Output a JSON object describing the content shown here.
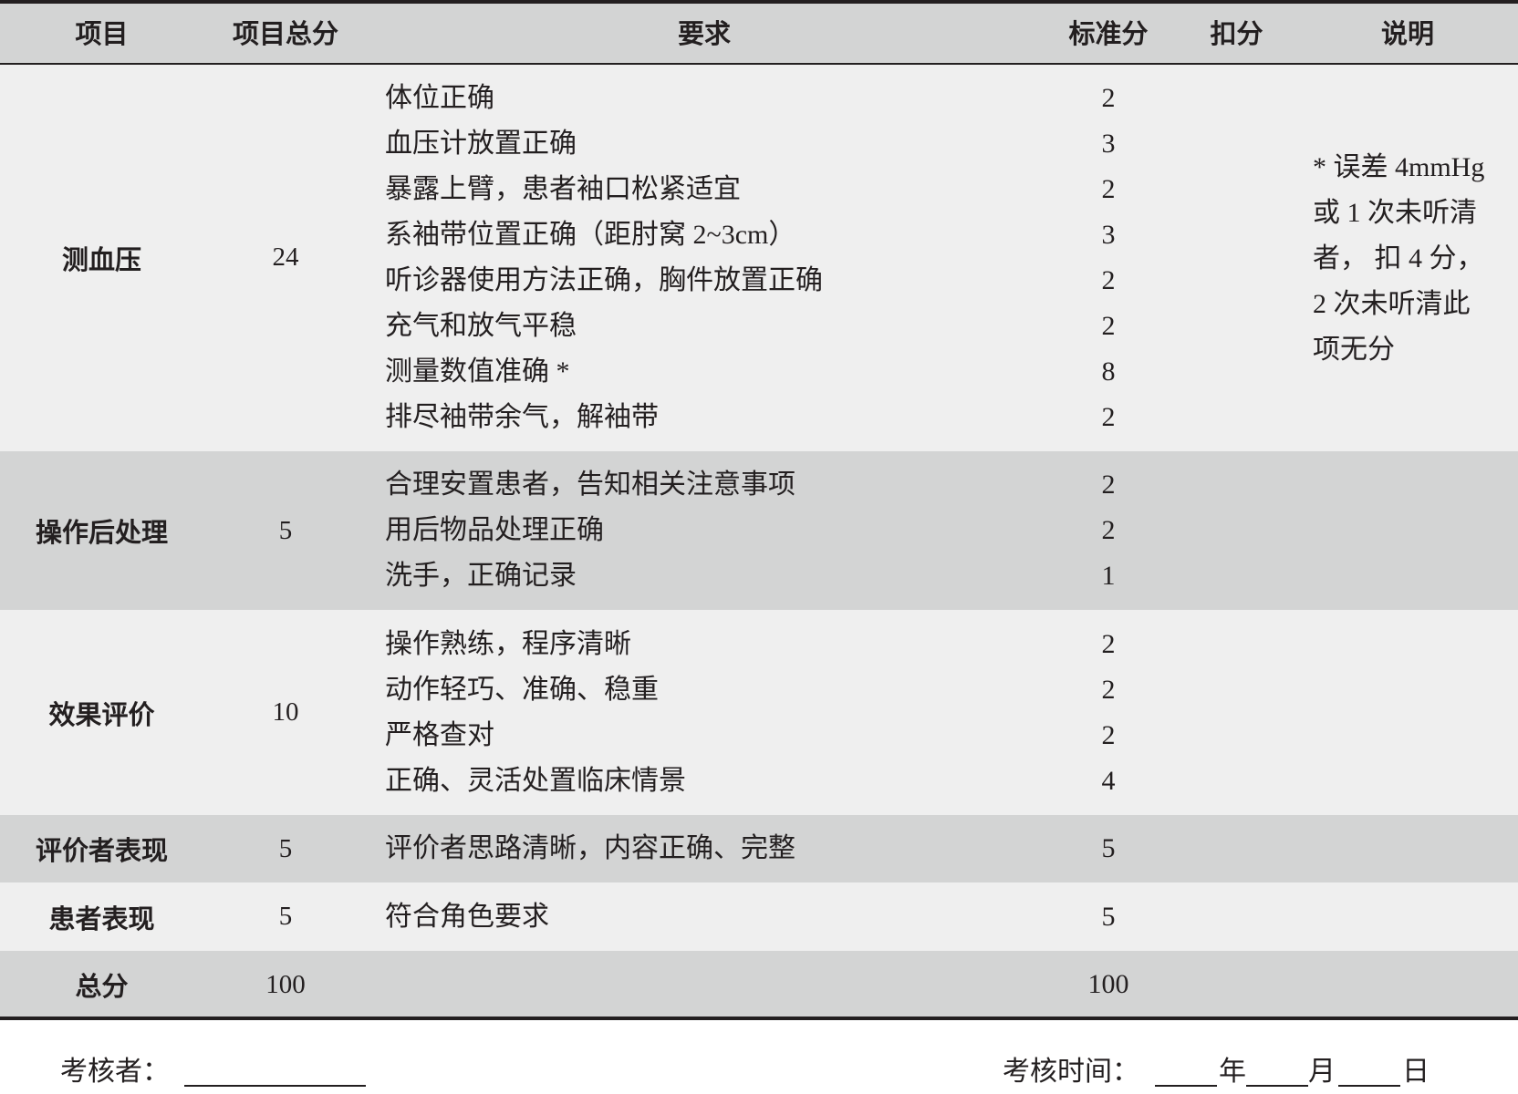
{
  "header": {
    "item": "项目",
    "item_total": "项目总分",
    "requirement": "要求",
    "standard": "标准分",
    "deduction": "扣分",
    "note": "说明"
  },
  "rows": [
    {
      "item": "测血压",
      "total": "24",
      "shade": "light",
      "requirements": [
        [
          "体位正确",
          "2"
        ],
        [
          "血压计放置正确",
          "3"
        ],
        [
          "暴露上臂，患者袖口松紧适宜",
          "2"
        ],
        [
          "系袖带位置正确（距肘窝 2~3cm）",
          "3"
        ],
        [
          "听诊器使用方法正确，胸件放置正确",
          "2"
        ],
        [
          "充气和放气平稳",
          "2"
        ],
        [
          "测量数值准确 *",
          "8"
        ],
        [
          "排尽袖带余气，解袖带",
          "2"
        ]
      ],
      "note": [
        "* 误差 4mmHg",
        "或 1 次未听清",
        "者， 扣 4 分，",
        "2 次未听清此",
        "项无分"
      ]
    },
    {
      "item": "操作后处理",
      "total": "5",
      "shade": "gray",
      "requirements": [
        [
          "合理安置患者，告知相关注意事项",
          "2"
        ],
        [
          "用后物品处理正确",
          "2"
        ],
        [
          "洗手，正确记录",
          "1"
        ]
      ]
    },
    {
      "item": "效果评价",
      "total": "10",
      "shade": "light",
      "requirements": [
        [
          "操作熟练，程序清晰",
          "2"
        ],
        [
          "动作轻巧、准确、稳重",
          "2"
        ],
        [
          "严格查对",
          "2"
        ],
        [
          "正确、灵活处置临床情景",
          "4"
        ]
      ]
    },
    {
      "item": "评价者表现",
      "total": "5",
      "shade": "gray",
      "requirements": [
        [
          "评价者思路清晰，内容正确、完整",
          "5"
        ]
      ]
    },
    {
      "item": "患者表现",
      "total": "5",
      "shade": "light",
      "requirements": [
        [
          "符合角色要求",
          "5"
        ]
      ]
    },
    {
      "item": "总分",
      "total": "100",
      "shade": "gray",
      "requirements": [
        [
          "",
          "100"
        ]
      ]
    }
  ],
  "footer": {
    "examiner_label": "考核者：",
    "time_label": "考核时间：",
    "year": "年",
    "month": "月",
    "day": "日"
  }
}
